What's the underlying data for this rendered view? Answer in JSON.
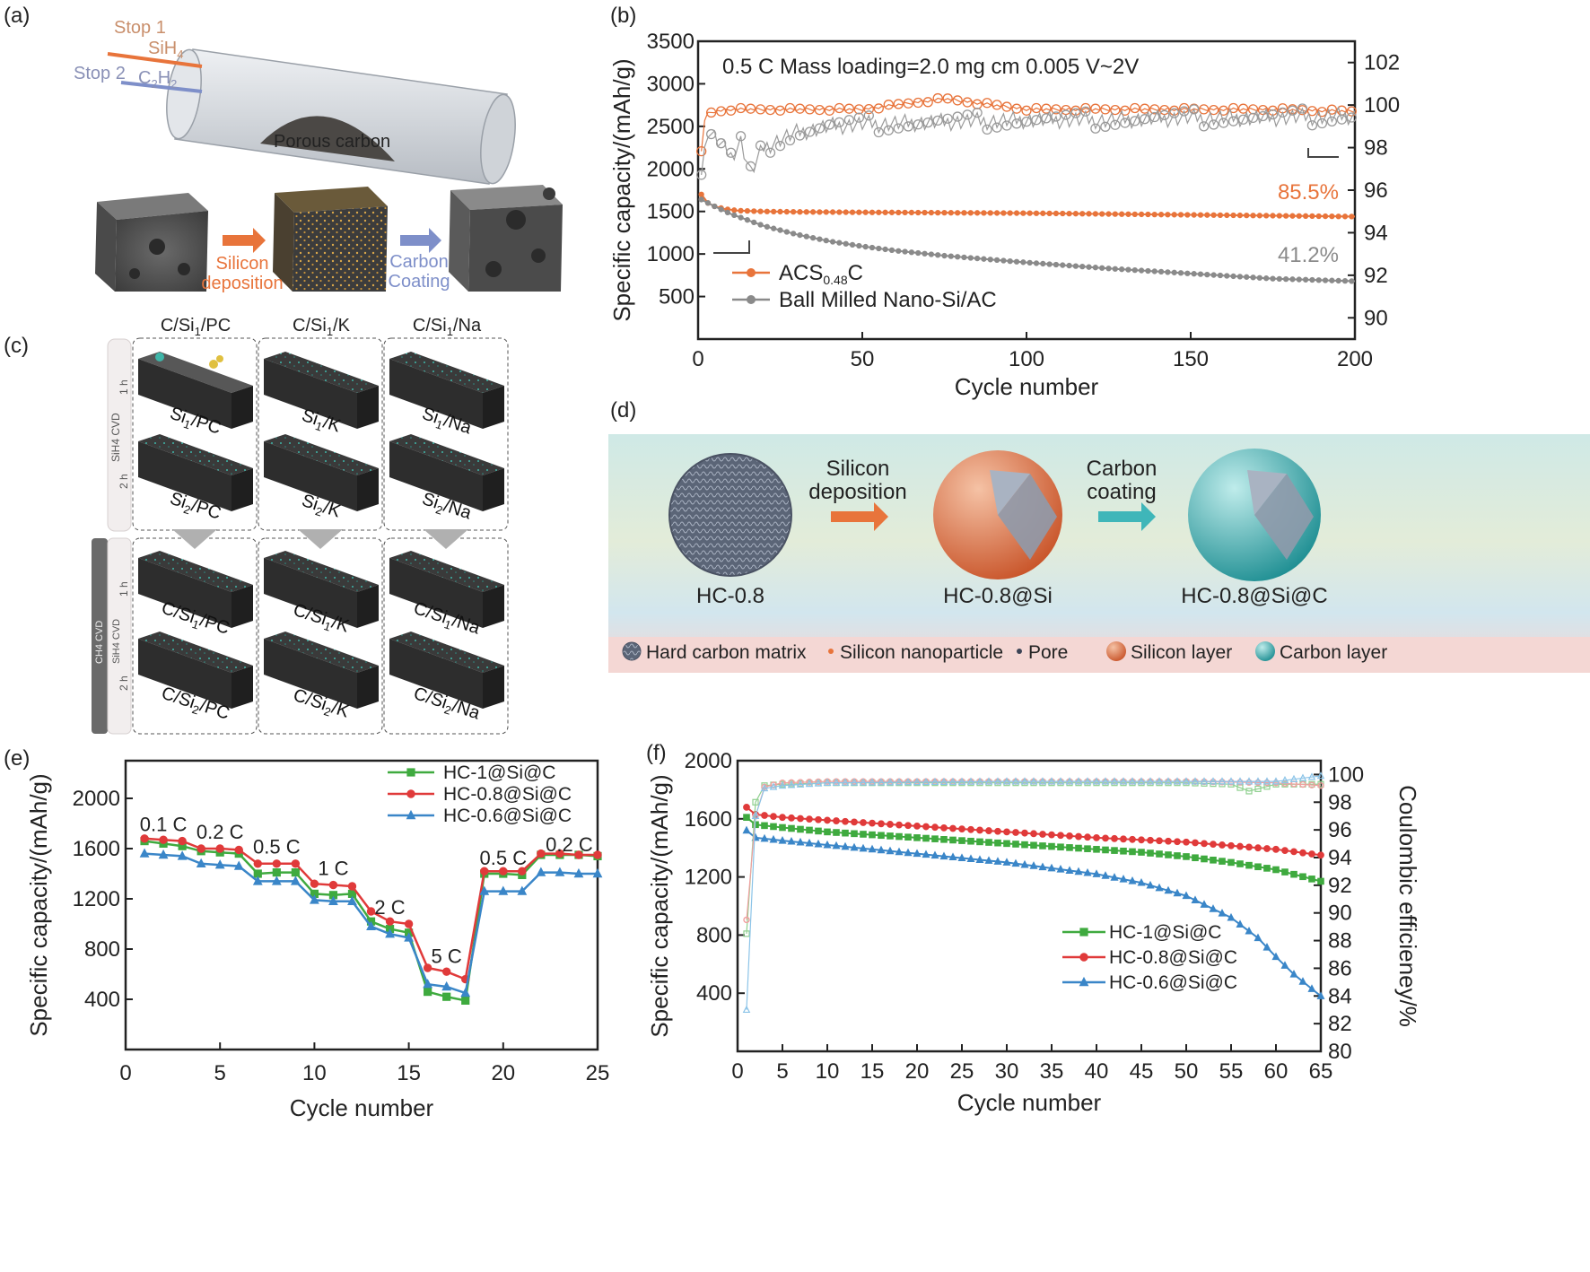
{
  "panel_labels": [
    "(a)",
    "(b)",
    "(c)",
    "(d)",
    "(e)",
    "(f)"
  ],
  "panel_a": {
    "stop1": "Stop 1",
    "sih4": "SiH",
    "sih4_sub": "4",
    "stop2": "Stop 2",
    "c2h2_c": "C",
    "c2h2_sub1": "2",
    "c2h2_h": "H",
    "c2h2_sub2": "2",
    "porous": "Porous carbon",
    "arrow1_line1": "Silicon",
    "arrow1_line2": "deposition",
    "arrow2_line1": "Carbon",
    "arrow2_line2": "Coating",
    "colors": {
      "orange": "#e8743b",
      "blue": "#7e8fc9",
      "tube": "#c7ccd3"
    }
  },
  "panel_c": {
    "col_headers": [
      {
        "a": "C/Si",
        "sub": "1",
        "b": "/PC"
      },
      {
        "a": "C/Si",
        "sub": "1",
        "b": "/K"
      },
      {
        "a": "C/Si",
        "sub": "1",
        "b": "/Na"
      }
    ],
    "top_side_label": "SiH4 CVD",
    "bottom_side_label_1": "CH4 CVD",
    "bottom_side_label_2": "SiH4 CVD",
    "time_1h": "1 h",
    "time_2h": "2 h",
    "top_labels": [
      [
        {
          "a": "Si",
          "sub": "1",
          "b": "/PC"
        },
        {
          "a": "Si",
          "sub": "2",
          "b": "/PC"
        }
      ],
      [
        {
          "a": "Si",
          "sub": "1",
          "b": "/K"
        },
        {
          "a": "Si",
          "sub": "2",
          "b": "/K"
        }
      ],
      [
        {
          "a": "Si",
          "sub": "1",
          "b": "/Na"
        },
        {
          "a": "Si",
          "sub": "2",
          "b": "/Na"
        }
      ]
    ],
    "bottom_labels": [
      [
        {
          "a": "C/Si",
          "sub": "1",
          "b": "/PC"
        },
        {
          "a": "C/Si",
          "sub": "2",
          "b": "/PC"
        }
      ],
      [
        {
          "a": "C/Si",
          "sub": "1",
          "b": "/K"
        },
        {
          "a": "C/Si",
          "sub": "2",
          "b": "/K"
        }
      ],
      [
        {
          "a": "C/Si",
          "sub": "1",
          "b": "/Na"
        },
        {
          "a": "C/Si",
          "sub": "2",
          "b": "/Na"
        }
      ]
    ]
  },
  "panel_d": {
    "step1_line1": "Silicon",
    "step1_line2": "deposition",
    "step2_line1": "Carbon",
    "step2_line2": "coating",
    "names": [
      "HC-0.8",
      "HC-0.8@Si",
      "HC-0.8@Si@C"
    ],
    "legend": [
      "Hard carbon matrix",
      "Silicon nanoparticle",
      "Pore",
      "Silicon layer",
      "Carbon layer"
    ],
    "colors": {
      "orange": "#e8743b",
      "teal": "#3fb6b9"
    }
  },
  "chart_data": [
    {
      "panel": "(b)",
      "type": "line",
      "annotation": "0.5 C Mass loading=2.0 mg cm 0.005 V~2V",
      "xlabel": "Cycle number",
      "ylabel": "Specific capacity/(mAh/g)",
      "y2label": "",
      "xlim": [
        0,
        200
      ],
      "ylim": [
        0,
        3500
      ],
      "y2lim": [
        89,
        103
      ],
      "xticks": [
        0,
        50,
        100,
        150,
        200
      ],
      "yticks": [
        500,
        1000,
        1500,
        2000,
        2500,
        3000,
        3500
      ],
      "y2ticks": [
        90,
        92,
        94,
        96,
        98,
        100,
        102
      ],
      "retention_labels": [
        "85.5%",
        "41.2%"
      ],
      "legend": [
        {
          "name": "ACS",
          "sub": "0.48",
          "suffix": "C",
          "color": "#e8743b"
        },
        {
          "name": "Ball Milled Nano-Si/AC",
          "sub": "",
          "suffix": "",
          "color": "#8a8a8a"
        }
      ],
      "series": [
        {
          "name": "ACS0.48C",
          "axis": "left",
          "color": "#e8743b",
          "x": [
            1,
            2,
            3,
            5,
            8,
            12,
            20,
            30,
            50,
            75,
            100,
            125,
            150,
            175,
            200
          ],
          "y": [
            1700,
            1650,
            1600,
            1560,
            1530,
            1510,
            1500,
            1495,
            1490,
            1485,
            1480,
            1470,
            1460,
            1450,
            1440
          ]
        },
        {
          "name": "Ball Milled Nano-Si/AC",
          "axis": "left",
          "color": "#8a8a8a",
          "x": [
            1,
            5,
            10,
            20,
            30,
            40,
            50,
            60,
            75,
            100,
            125,
            150,
            175,
            200
          ],
          "y": [
            1640,
            1560,
            1470,
            1330,
            1230,
            1150,
            1090,
            1040,
            980,
            900,
            830,
            770,
            710,
            680
          ]
        },
        {
          "name": "ACS0.48C CE",
          "axis": "right",
          "color": "#e8743b",
          "x": [
            1,
            2,
            3,
            5,
            10,
            25,
            50,
            75,
            100,
            125,
            150,
            175,
            200
          ],
          "y": [
            97.8,
            99.3,
            99.6,
            99.7,
            99.8,
            99.8,
            99.8,
            100.3,
            99.8,
            99.8,
            99.8,
            99.8,
            99.7
          ]
        },
        {
          "name": "Ball Milled Nano-Si/AC CE",
          "axis": "right",
          "color": "#9a9a9a",
          "x": [
            1,
            3,
            6,
            10,
            13,
            16,
            20,
            25,
            30,
            40,
            50,
            75,
            100,
            125,
            150,
            175,
            200
          ],
          "y": [
            96.8,
            98.8,
            98.3,
            97.6,
            98.3,
            96.8,
            98.0,
            98.4,
            98.7,
            99.0,
            99.1,
            99.2,
            99.3,
            99.3,
            99.4,
            99.4,
            99.5
          ]
        }
      ]
    },
    {
      "panel": "(e)",
      "type": "line",
      "xlabel": "Cycle number",
      "ylabel": "Specific capacity/(mAh/g)",
      "xlim": [
        0,
        25
      ],
      "ylim": [
        0,
        2300
      ],
      "xticks": [
        0,
        5,
        10,
        15,
        20,
        25
      ],
      "yticks": [
        400,
        800,
        1200,
        1600,
        2000
      ],
      "rate_labels": [
        {
          "text": "0.1 C",
          "x": 2.0,
          "y": 1740
        },
        {
          "text": "0.2 C",
          "x": 5.0,
          "y": 1680
        },
        {
          "text": "0.5 C",
          "x": 8.0,
          "y": 1560
        },
        {
          "text": "1 C",
          "x": 11.0,
          "y": 1390
        },
        {
          "text": "2 C",
          "x": 14.0,
          "y": 1080
        },
        {
          "text": "5 C",
          "x": 17.0,
          "y": 690
        },
        {
          "text": "0.5 C",
          "x": 20.0,
          "y": 1470
        },
        {
          "text": "0.2 C",
          "x": 23.5,
          "y": 1580
        }
      ],
      "categories": [
        1,
        2,
        3,
        4,
        5,
        6,
        7,
        8,
        9,
        10,
        11,
        12,
        13,
        14,
        15,
        16,
        17,
        18,
        19,
        20,
        21,
        22,
        23,
        24,
        25
      ],
      "series": [
        {
          "name": "HC-1@Si@C",
          "color": "#3faa3f",
          "marker": "square",
          "values": [
            1660,
            1640,
            1620,
            1580,
            1570,
            1560,
            1400,
            1410,
            1410,
            1240,
            1230,
            1240,
            1020,
            960,
            930,
            460,
            420,
            390,
            1400,
            1400,
            1390,
            1550,
            1550,
            1550,
            1540
          ]
        },
        {
          "name": "HC-0.8@Si@C",
          "color": "#e03a3a",
          "marker": "circle",
          "values": [
            1680,
            1670,
            1660,
            1600,
            1600,
            1590,
            1480,
            1480,
            1480,
            1320,
            1310,
            1300,
            1100,
            1020,
            1000,
            650,
            620,
            560,
            1420,
            1420,
            1420,
            1560,
            1560,
            1550,
            1550
          ]
        },
        {
          "name": "HC-0.6@Si@C",
          "color": "#3a86c8",
          "marker": "triangle",
          "values": [
            1560,
            1550,
            1540,
            1480,
            1470,
            1460,
            1340,
            1340,
            1340,
            1190,
            1180,
            1180,
            980,
            920,
            890,
            520,
            500,
            450,
            1260,
            1260,
            1260,
            1410,
            1410,
            1400,
            1400
          ]
        }
      ]
    },
    {
      "panel": "(f)",
      "type": "line",
      "xlabel": "Cycle number",
      "ylabel": "Specific capacity/(mAh/g)",
      "y2label": "Coulombic efficieney/%",
      "xlim": [
        0,
        65
      ],
      "ylim": [
        0,
        2000
      ],
      "y2lim": [
        80,
        101
      ],
      "xticks": [
        0,
        5,
        10,
        15,
        20,
        25,
        30,
        35,
        40,
        45,
        50,
        55,
        60,
        65
      ],
      "yticks": [
        400,
        800,
        1200,
        1600,
        2000
      ],
      "y2ticks": [
        80,
        82,
        84,
        86,
        88,
        90,
        92,
        94,
        96,
        98,
        100
      ],
      "series": [
        {
          "name": "HC-1@Si@C",
          "axis": "left",
          "color": "#3faa3f",
          "marker": "square",
          "x": [
            1,
            2,
            5,
            10,
            20,
            30,
            40,
            45,
            50,
            55,
            60,
            65
          ],
          "y": [
            1610,
            1560,
            1540,
            1510,
            1470,
            1430,
            1390,
            1370,
            1340,
            1300,
            1250,
            1170
          ]
        },
        {
          "name": "HC-0.8@Si@C",
          "axis": "left",
          "color": "#e03a3a",
          "marker": "circle",
          "x": [
            1,
            2,
            5,
            10,
            20,
            30,
            40,
            50,
            60,
            65
          ],
          "y": [
            1680,
            1630,
            1610,
            1590,
            1550,
            1510,
            1470,
            1440,
            1390,
            1350
          ]
        },
        {
          "name": "HC-0.6@Si@C",
          "axis": "left",
          "color": "#3a86c8",
          "marker": "triangle",
          "x": [
            1,
            2,
            5,
            10,
            20,
            30,
            40,
            45,
            50,
            55,
            58,
            60,
            62,
            65
          ],
          "y": [
            1520,
            1470,
            1450,
            1420,
            1360,
            1300,
            1220,
            1160,
            1070,
            920,
            780,
            650,
            530,
            380
          ]
        },
        {
          "name": "HC-1@Si@C CE",
          "axis": "right",
          "color": "#8fd08f",
          "marker": "square",
          "x": [
            1,
            2,
            3,
            5,
            10,
            30,
            50,
            55,
            57,
            60,
            65
          ],
          "y": [
            88.5,
            98.0,
            99.2,
            99.3,
            99.4,
            99.4,
            99.4,
            99.3,
            98.8,
            99.3,
            99.3
          ]
        },
        {
          "name": "HC-0.8@Si@C CE",
          "axis": "right",
          "color": "#f0a0a0",
          "marker": "circle",
          "x": [
            1,
            2,
            3,
            5,
            10,
            30,
            50,
            60,
            65
          ],
          "y": [
            89.5,
            97.0,
            99.1,
            99.4,
            99.5,
            99.5,
            99.5,
            99.4,
            99.2
          ]
        },
        {
          "name": "HC-0.6@Si@C CE",
          "axis": "right",
          "color": "#8cc4e8",
          "marker": "triangle",
          "x": [
            1,
            2,
            3,
            5,
            10,
            30,
            50,
            60,
            65
          ],
          "y": [
            83.0,
            97.0,
            99.0,
            99.2,
            99.4,
            99.5,
            99.5,
            99.5,
            99.9
          ]
        }
      ]
    }
  ]
}
